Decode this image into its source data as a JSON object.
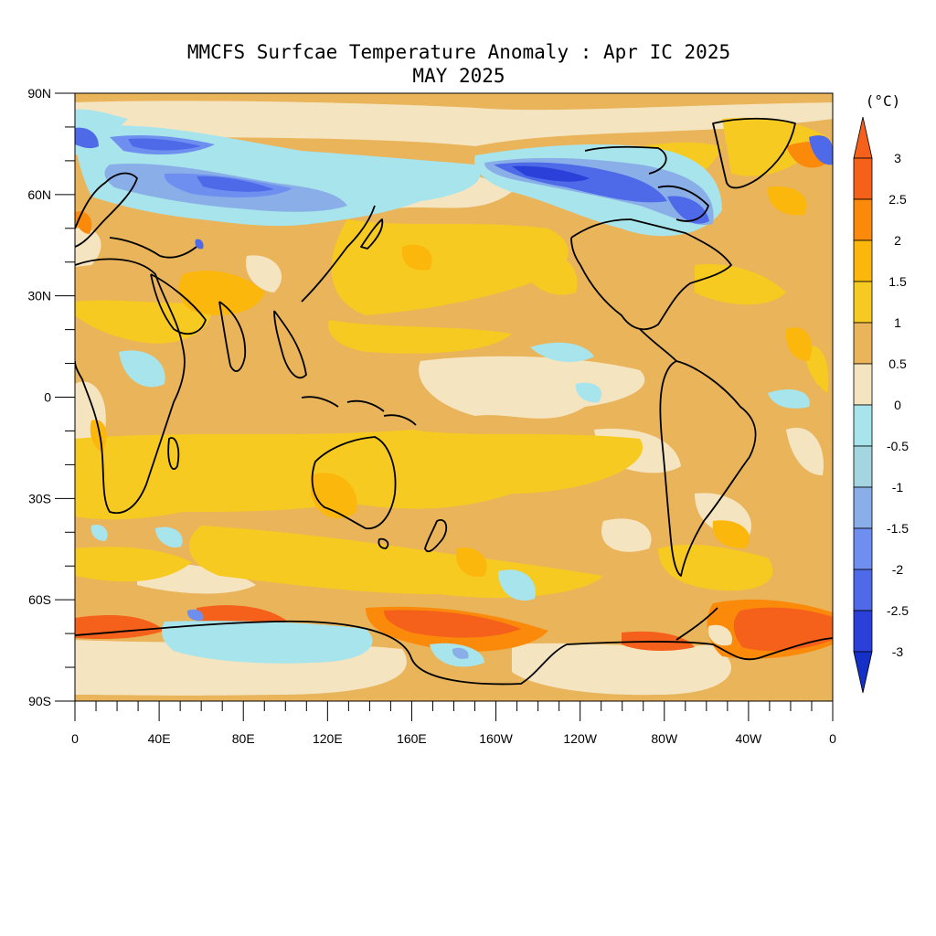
{
  "title": "MMCFS Surfcae Temperature Anomaly : Apr IC 2025",
  "subtitle": "MAY 2025",
  "units": "(°C)",
  "lat_ticks": [
    "90N",
    "60N",
    "30N",
    "0",
    "30S",
    "60S",
    "90S"
  ],
  "lon_ticks": [
    "0",
    "40E",
    "80E",
    "120E",
    "160E",
    "160W",
    "120W",
    "80W",
    "40W",
    "0"
  ],
  "colorbar": {
    "labels": [
      "3",
      "2.5",
      "2",
      "1.5",
      "1",
      "0.5",
      "0",
      "-0.5",
      "-1",
      "-1.5",
      "-2",
      "-2.5",
      "-3"
    ],
    "colors": [
      "#f5601a",
      "#fb8a0a",
      "#fcb70d",
      "#f7ca22",
      "#e9b45a",
      "#f5e4c0",
      "#a8e4ec",
      "#a4d6e2",
      "#8aaee8",
      "#6e8ef0",
      "#4f6ae8",
      "#2a40d8",
      "#1430c8"
    ],
    "over_color": "#f5601a",
    "under_color": "#1430c8"
  },
  "map": {
    "projection": "cylindrical equidistant",
    "lat_range": [
      -90,
      90
    ],
    "lon_range": [
      0,
      360
    ],
    "background_color": "#e9b45a",
    "anomaly_regions": [
      {
        "name": "Siberia cold anomaly",
        "value": -2
      },
      {
        "name": "Alaska / Canada cold anomaly",
        "value": -2.5
      },
      {
        "name": "Greenland Sea cold anomaly",
        "value": -2.5
      },
      {
        "name": "North Eurasia cool band",
        "value": -0.5
      },
      {
        "name": "Equatorial Pacific neutral band",
        "value": 0
      },
      {
        "name": "South Pacific warm band",
        "value": 1.5
      },
      {
        "name": "Southern Ocean warm anomaly (Ross Sea)",
        "value": 3
      },
      {
        "name": "Weddell Sea warm anomaly",
        "value": 3
      },
      {
        "name": "East Antarctica cool anomaly",
        "value": -0.5
      },
      {
        "name": "Iran / Pakistan warm anomaly",
        "value": 2
      }
    ]
  }
}
